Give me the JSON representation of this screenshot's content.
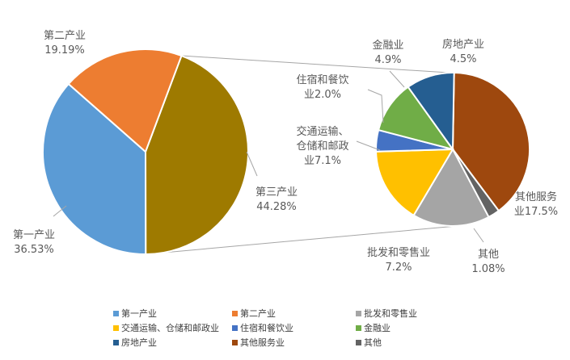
{
  "chart_data": {
    "type": "pie",
    "title": "",
    "main_pie": {
      "slices": [
        {
          "name": "第一产业",
          "label_name": "第一产业",
          "value": 36.53,
          "label_value": "36.53%",
          "color": "#5b9bd5"
        },
        {
          "name": "第二产业",
          "label_name": "第二产业",
          "value": 19.19,
          "label_value": "19.19%",
          "color": "#ed7d31"
        },
        {
          "name": "第三产业",
          "label_name": "第三产业",
          "value": 44.28,
          "label_value": "44.28%",
          "color": "#9e7a00"
        }
      ]
    },
    "sub_pie": {
      "parent": "第三产业",
      "slices": [
        {
          "name": "其他服务业",
          "label_lines": [
            "其他服务",
            "业17.5%"
          ],
          "value": 17.5,
          "color": "#9e480e"
        },
        {
          "name": "其他",
          "label_lines": [
            "其他",
            "1.08%"
          ],
          "value": 1.08,
          "color": "#636363"
        },
        {
          "name": "批发和零售业",
          "label_lines": [
            "批发和零售业",
            "7.2%"
          ],
          "value": 7.2,
          "color": "#a5a5a5"
        },
        {
          "name": "交通运输、仓储和邮政业",
          "label_lines": [
            "交通运输、",
            "仓储和邮政",
            "业7.1%"
          ],
          "value": 7.1,
          "color": "#ffc000"
        },
        {
          "name": "住宿和餐饮业",
          "label_lines": [
            "住宿和餐饮",
            "业2.0%"
          ],
          "value": 2.0,
          "color": "#4472c4"
        },
        {
          "name": "金融业",
          "label_lines": [
            "金融业",
            "4.9%"
          ],
          "value": 4.9,
          "color": "#70ad47"
        },
        {
          "name": "房地产业",
          "label_lines": [
            "房地产业",
            "4.5%"
          ],
          "value": 4.5,
          "color": "#255e91"
        }
      ]
    },
    "legend": {
      "placement": "bottom",
      "items": [
        {
          "name": "第一产业",
          "color": "#5b9bd5"
        },
        {
          "name": "第二产业",
          "color": "#ed7d31"
        },
        {
          "name": "批发和零售业",
          "color": "#a5a5a5"
        },
        {
          "name": "交通运输、仓储和邮政业",
          "color": "#ffc000"
        },
        {
          "name": "住宿和餐饮业",
          "color": "#4472c4"
        },
        {
          "name": "金融业",
          "color": "#70ad47"
        },
        {
          "name": "房地产业",
          "color": "#255e91"
        },
        {
          "name": "其他服务业",
          "color": "#9e480e"
        },
        {
          "name": "其他",
          "color": "#636363"
        }
      ]
    }
  }
}
